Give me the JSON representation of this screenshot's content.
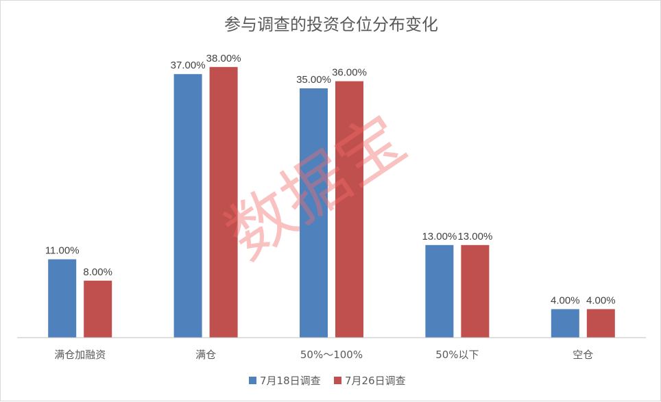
{
  "chart_data": {
    "type": "bar",
    "title": "参与调查的投资仓位分布变化",
    "categories": [
      "满仓加融资",
      "满仓",
      "50%～100%",
      "50%以下",
      "空仓"
    ],
    "series": [
      {
        "name": "7月18日调查",
        "values": [
          11.0,
          37.0,
          35.0,
          13.0,
          4.0
        ],
        "labels": [
          "11.00%",
          "37.00%",
          "35.00%",
          "13.00%",
          "4.00%"
        ],
        "color": "#4f81bd"
      },
      {
        "name": "7月26日调查",
        "values": [
          8.0,
          38.0,
          36.0,
          13.0,
          4.0
        ],
        "labels": [
          "8.00%",
          "38.00%",
          "36.00%",
          "13.00%",
          "4.00%"
        ],
        "color": "#c0504d"
      }
    ],
    "ylim": [
      0,
      40
    ],
    "grid": false,
    "legend_position": "bottom",
    "xlabel": "",
    "ylabel": ""
  },
  "watermark": {
    "text": "数据宝",
    "color": "#f26b6b"
  },
  "axis_color": "#bfbfbf"
}
